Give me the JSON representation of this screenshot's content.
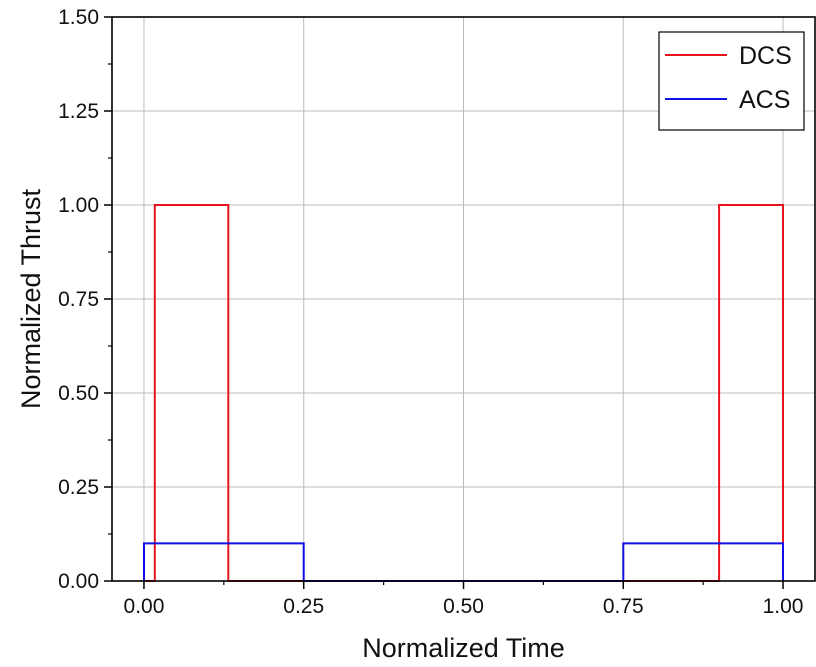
{
  "chart_data": {
    "type": "line",
    "step": true,
    "xlabel": "Normalized Time",
    "ylabel": "Normalized Thrust",
    "xlim": [
      -0.05,
      1.05
    ],
    "ylim": [
      0,
      1.5
    ],
    "xticks": [
      0.0,
      0.25,
      0.5,
      0.75,
      1.0
    ],
    "xtick_labels": [
      "0.00",
      "0.25",
      "0.50",
      "0.75",
      "1.00"
    ],
    "yticks": [
      0.0,
      0.25,
      0.5,
      0.75,
      1.0,
      1.25,
      1.5
    ],
    "ytick_labels": [
      "0.00",
      "0.25",
      "0.50",
      "0.75",
      "1.00",
      "1.25",
      "1.50"
    ],
    "grid": true,
    "legend_position": "top-right",
    "series": [
      {
        "name": "DCS",
        "color": "#e8141c",
        "x": [
          0.0,
          0.017,
          0.017,
          0.132,
          0.132,
          0.9,
          0.9,
          1.0,
          1.0
        ],
        "y": [
          0.0,
          0.0,
          1.0,
          1.0,
          0.0,
          0.0,
          1.0,
          1.0,
          0.0
        ]
      },
      {
        "name": "ACS",
        "color": "#1010e6",
        "x": [
          0.0,
          0.0,
          0.25,
          0.25,
          0.75,
          0.75,
          1.0,
          1.0
        ],
        "y": [
          0.0,
          0.1,
          0.1,
          0.0,
          0.0,
          0.1,
          0.1,
          0.0
        ]
      }
    ]
  }
}
